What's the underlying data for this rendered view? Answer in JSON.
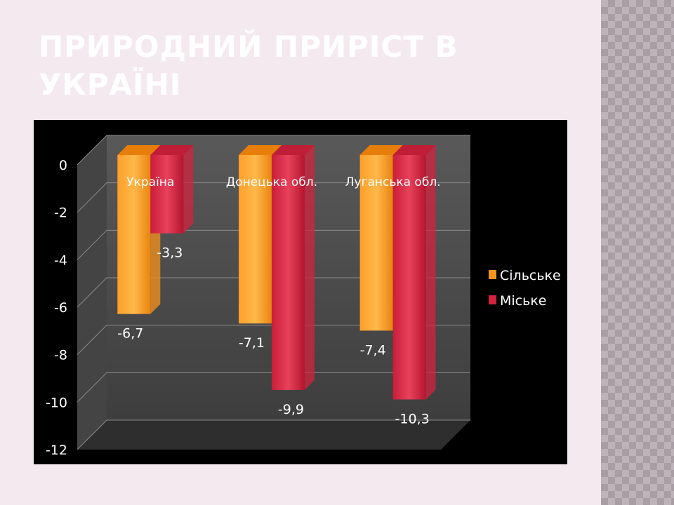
{
  "slide": {
    "title": "ПРИРОДНИЙ ПРИРІСТ В УКРАЇНІ"
  },
  "colors": {
    "rural": "#f7931e",
    "urban": "#d2233f",
    "background": "#f4e9ef",
    "chart_background": "#000000"
  },
  "chart_data": {
    "type": "bar",
    "categories": [
      "Україна",
      "Донецька обл.",
      "Луганська обл."
    ],
    "series": [
      {
        "name": "Сільське",
        "values": [
          -6.7,
          -7.1,
          -7.4
        ],
        "labels": [
          "-6,7",
          "-7,1",
          "-7,4"
        ]
      },
      {
        "name": "Міське",
        "values": [
          -3.3,
          -9.9,
          -10.3
        ],
        "labels": [
          "-3,3",
          "-9,9",
          "-10,3"
        ]
      }
    ],
    "ylim": [
      -12,
      0
    ],
    "yticks": [
      0,
      -2,
      -4,
      -6,
      -8,
      -10,
      -12
    ],
    "grid": true,
    "legend": "right",
    "style": "3d-column"
  }
}
